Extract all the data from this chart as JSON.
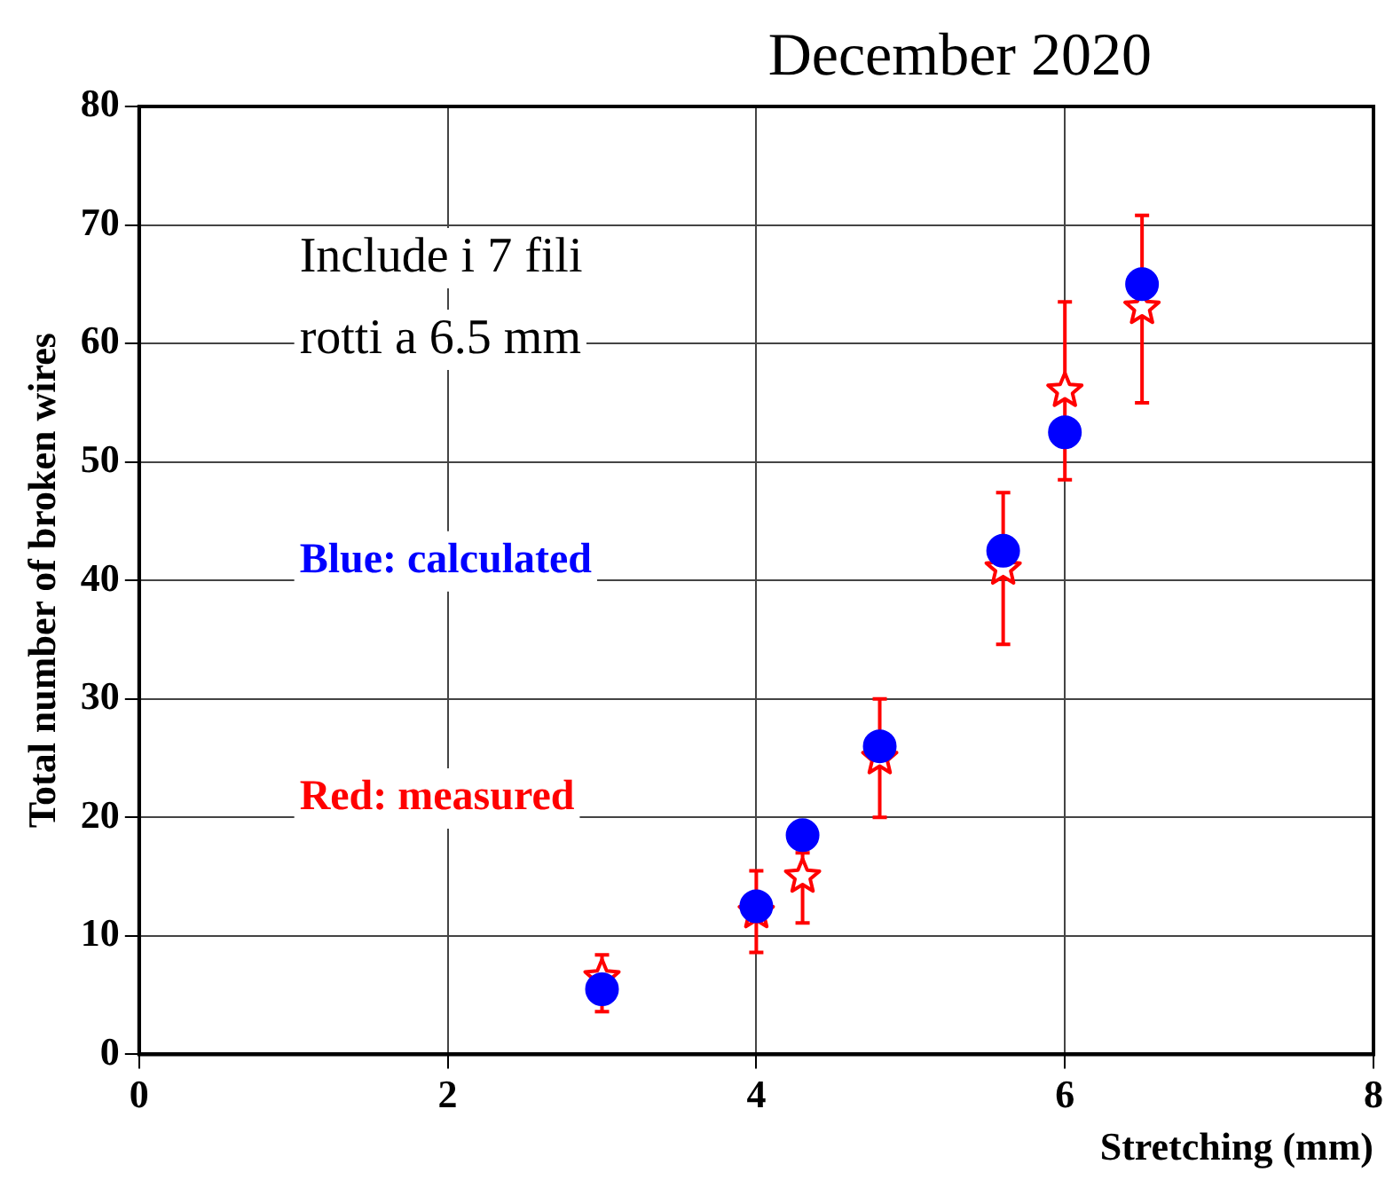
{
  "chart_data": {
    "type": "scatter",
    "title": "December 2020",
    "xlabel": "Stretching (mm)",
    "ylabel": "Total number of broken wires",
    "annotations": [
      "Include i 7 fili rotti a 6.5 mm",
      "Blue: calculated",
      "Red: measured"
    ],
    "xlim": [
      0,
      8
    ],
    "xticks": [
      0,
      2,
      4,
      6,
      8
    ],
    "ylim": [
      0,
      80
    ],
    "yticks": [
      0,
      10,
      20,
      30,
      40,
      50,
      60,
      70,
      80
    ],
    "grid": true,
    "series": [
      {
        "color": "#0000ff",
        "marker": "circle",
        "x": [
          3,
          4,
          4.3,
          4.8,
          5.6,
          6,
          6.5
        ],
        "values": [
          5.5,
          12.5,
          18.5,
          26,
          42.5,
          52.5,
          65
        ]
      },
      {
        "color": "#ff0000",
        "marker": "star",
        "x": [
          3,
          4,
          4.3,
          4.8,
          5.6,
          6,
          6.5
        ],
        "values": [
          6.5,
          12,
          15,
          25,
          41,
          56,
          63
        ],
        "errors": [
          [
            3.6,
            8.4
          ],
          [
            8.6,
            15.5
          ],
          [
            11.1,
            17
          ],
          [
            20,
            30
          ],
          [
            34.6,
            47.4
          ],
          [
            48.5,
            63.5
          ],
          [
            55,
            70.8
          ]
        ]
      }
    ]
  }
}
